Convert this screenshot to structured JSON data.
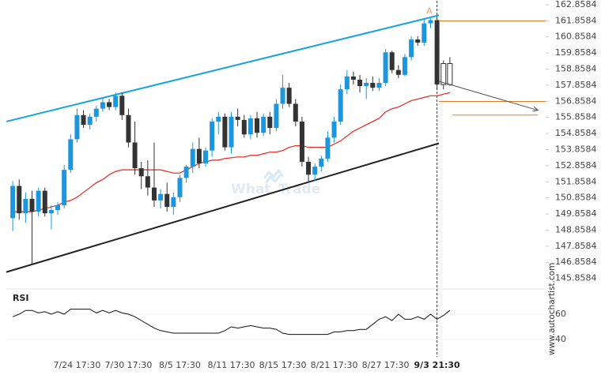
{
  "chart_data": [
    {
      "type": "candlestick",
      "categories": [
        null,
        null,
        null,
        null,
        null,
        null,
        null,
        null,
        null,
        null,
        "7/24 17:30",
        null,
        null,
        null,
        null,
        null,
        null,
        null,
        "7/30 17:30",
        null,
        null,
        null,
        null,
        null,
        null,
        null,
        "8/5 17:30",
        null,
        null,
        null,
        null,
        null,
        null,
        null,
        "8/11 17:30",
        null,
        null,
        null,
        null,
        null,
        null,
        null,
        "8/15 17:30",
        null,
        null,
        null,
        null,
        null,
        null,
        null,
        "8/21 17:30",
        null,
        null,
        null,
        null,
        null,
        null,
        null,
        "8/27 17:30",
        null,
        null,
        null,
        null,
        null,
        null,
        null,
        "9/3 21:30",
        null,
        null
      ],
      "open": [
        149.6,
        151.6,
        149.9,
        150.8,
        150.0,
        151.3,
        149.9,
        150.1,
        150.4,
        152.6,
        154.5,
        156.0,
        155.4,
        155.9,
        156.4,
        156.8,
        156.5,
        157.2,
        156.0,
        154.3,
        152.7,
        152.2,
        151.5,
        150.7,
        151.1,
        150.3,
        150.9,
        152.1,
        152.8,
        153.9,
        153.0,
        153.8,
        155.6,
        155.9,
        154.0,
        155.9,
        155.7,
        154.8,
        155.8,
        154.9,
        155.9,
        155.2,
        156.7,
        157.7,
        156.7,
        155.6,
        153.1,
        152.3,
        152.8,
        153.3,
        154.6,
        155.6,
        157.6,
        158.4,
        158.2,
        157.8,
        158.0,
        157.7,
        158.0,
        159.9,
        158.8,
        158.5,
        159.6,
        160.7,
        160.5,
        161.7,
        161.9,
        157.9,
        159.2
      ],
      "high": [
        151.9,
        152.0,
        151.2,
        151.3,
        151.5,
        151.5,
        150.4,
        150.6,
        152.9,
        154.8,
        156.4,
        156.3,
        156.1,
        156.6,
        157.1,
        157.0,
        157.4,
        157.4,
        156.4,
        155.6,
        153.1,
        153.2,
        154.3,
        151.4,
        151.8,
        151.2,
        152.3,
        152.9,
        154.3,
        154.6,
        154.0,
        155.8,
        156.2,
        156.1,
        156.2,
        156.4,
        156.0,
        156.0,
        156.2,
        156.1,
        156.2,
        157.0,
        158.5,
        158.0,
        157.0,
        155.9,
        153.4,
        153.0,
        153.5,
        155.0,
        155.9,
        157.9,
        158.8,
        158.7,
        158.5,
        158.3,
        158.4,
        158.3,
        160.1,
        160.0,
        159.1,
        159.8,
        160.9,
        160.9,
        162.0,
        162.0,
        162.0,
        159.4,
        159.6
      ],
      "low": [
        148.8,
        149.5,
        149.3,
        146.7,
        149.7,
        149.7,
        148.9,
        149.8,
        150.2,
        152.4,
        154.3,
        155.2,
        155.1,
        155.6,
        156.2,
        156.3,
        156.3,
        155.7,
        154.0,
        152.3,
        151.4,
        151.0,
        150.3,
        150.2,
        150.0,
        149.8,
        150.6,
        151.8,
        152.4,
        152.7,
        152.8,
        153.4,
        154.8,
        153.8,
        153.6,
        155.3,
        154.6,
        154.5,
        154.6,
        154.7,
        154.8,
        155.0,
        156.4,
        156.5,
        155.3,
        152.8,
        151.8,
        151.9,
        152.5,
        153.1,
        154.3,
        155.4,
        157.3,
        157.9,
        157.4,
        157.0,
        157.5,
        157.5,
        157.8,
        158.6,
        158.3,
        158.4,
        159.4,
        160.3,
        160.3,
        161.4,
        157.6,
        157.6,
        157.8
      ],
      "close": [
        151.6,
        149.9,
        150.8,
        150.0,
        151.3,
        149.9,
        150.1,
        150.4,
        152.6,
        154.5,
        156.0,
        155.4,
        155.9,
        156.4,
        156.8,
        156.5,
        157.2,
        156.0,
        154.3,
        152.7,
        152.2,
        151.5,
        150.7,
        151.1,
        150.3,
        150.9,
        152.1,
        152.8,
        153.9,
        153.0,
        153.8,
        155.6,
        155.9,
        154.0,
        155.9,
        155.7,
        154.8,
        155.8,
        154.9,
        155.9,
        155.2,
        156.7,
        157.7,
        156.7,
        155.6,
        153.1,
        152.3,
        152.8,
        153.3,
        154.6,
        155.6,
        157.6,
        158.4,
        158.2,
        157.8,
        158.0,
        157.7,
        158.0,
        159.9,
        158.8,
        158.5,
        159.6,
        160.7,
        160.5,
        161.7,
        161.9,
        157.9,
        159.2,
        157.9
      ],
      "up_color": "#1e96dc",
      "down_color": "#333333",
      "open_candle_style": "hollow",
      "moving_average": {
        "color": "#e8231e",
        "values": [
          150.0,
          150.0,
          150.0,
          150.0,
          150.1,
          150.2,
          150.3,
          150.4,
          150.6,
          150.7,
          150.9,
          151.2,
          151.5,
          151.8,
          152.0,
          152.3,
          152.5,
          152.6,
          152.6,
          152.6,
          152.6,
          152.6,
          152.6,
          152.6,
          152.5,
          152.4,
          152.4,
          152.6,
          152.8,
          153.0,
          153.1,
          153.2,
          153.2,
          153.3,
          153.35,
          153.4,
          153.4,
          153.5,
          153.5,
          153.6,
          153.7,
          153.7,
          153.8,
          154.0,
          154.1,
          154.1,
          154.0,
          154.0,
          154.0,
          154.0,
          154.2,
          154.4,
          154.7,
          155.0,
          155.2,
          155.4,
          155.6,
          155.8,
          156.2,
          156.4,
          156.5,
          156.7,
          156.9,
          157.0,
          157.1,
          157.2,
          157.2,
          157.3,
          157.4
        ]
      },
      "trendlines": [
        {
          "color": "#1aa3e0",
          "x": [
            -1,
            66.3
          ],
          "y": [
            155.6,
            162.2
          ]
        },
        {
          "color": "#222222",
          "x": [
            -1,
            66.3
          ],
          "y": [
            146.25,
            154.25
          ]
        }
      ],
      "levels": [
        {
          "color": "#e07b28",
          "value": 161.85,
          "x": [
            66.3,
            82.9
          ]
        },
        {
          "color": "#e07b28",
          "value": 156.85,
          "x": [
            66.3,
            82.9
          ]
        },
        {
          "color": "#e07b28",
          "value": 156.0,
          "x": [
            68.4,
            81.7
          ]
        }
      ],
      "arrow": {
        "color": "#555555",
        "x": [
          66.3,
          81.7
        ],
        "y": [
          158.1,
          156.3
        ]
      },
      "annotation": {
        "text": "A",
        "x": 64.8,
        "y": 162.45,
        "color": "#e8a070"
      },
      "xlim": [
        -1,
        82.9
      ],
      "ylim": [
        145.3,
        163.1
      ],
      "yticks": [
        145.8584,
        146.8584,
        147.8584,
        148.8584,
        149.8584,
        150.8584,
        151.8584,
        152.8584,
        153.8584,
        154.8584,
        155.8584,
        156.8584,
        157.8584,
        158.8584,
        159.8584,
        160.8584,
        161.8584,
        162.8584
      ]
    },
    {
      "type": "line",
      "title": "RSI",
      "color": "#111111",
      "values": [
        58,
        60,
        63,
        63,
        61,
        62,
        60,
        62,
        60,
        64,
        64,
        64,
        64,
        61,
        63,
        61,
        63,
        61,
        60,
        58,
        55,
        52,
        49,
        47,
        46,
        45,
        45,
        45,
        45,
        45,
        45,
        45,
        45,
        47,
        50,
        49,
        50,
        51,
        50,
        49,
        49,
        48,
        45,
        44,
        44,
        44,
        44,
        44,
        44,
        44,
        46,
        46,
        47,
        47,
        48,
        48,
        52,
        56,
        58,
        55,
        60,
        56,
        56,
        58,
        56,
        60,
        56,
        59,
        63
      ],
      "ylim": [
        27.5,
        77.5
      ],
      "yticks": [
        40,
        60
      ]
    }
  ],
  "watermark": [
    "What",
    "Trade"
  ],
  "credit": "www.autochartist.com"
}
